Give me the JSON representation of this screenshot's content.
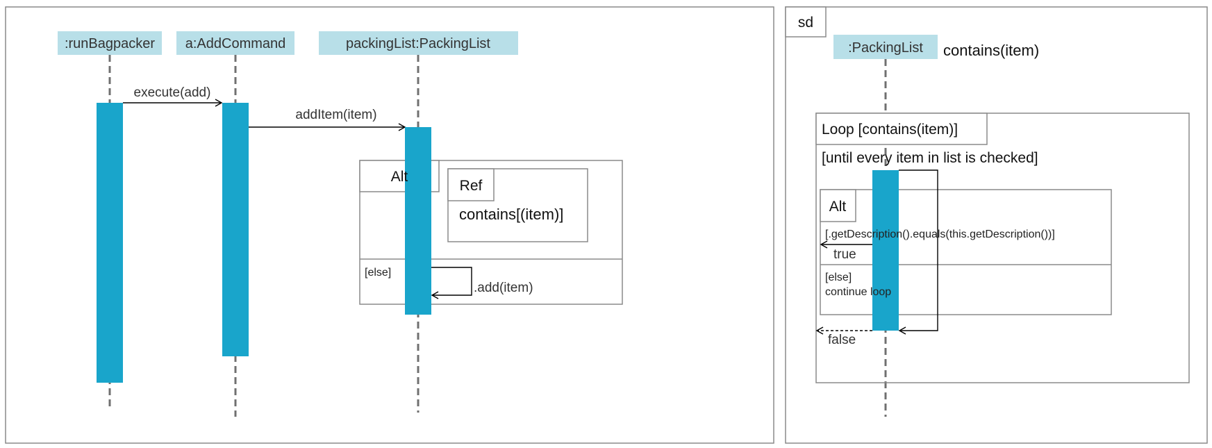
{
  "colors": {
    "lifeline_head": "#b8dfe8",
    "activation": "#19a5cb",
    "frame_border": "#8a8a8a",
    "line": "#000000",
    "lifeline_dash": "#707070"
  },
  "left": {
    "lifelines": [
      ":runBagpacker",
      "a:AddCommand",
      "packingList:PackingList"
    ],
    "messages": {
      "execute": "execute(add)",
      "add_item": "addItem(item)",
      "self_add": ".add(item)"
    },
    "alt_frame": {
      "label": "Alt",
      "else_guard": "[else]",
      "ref_label": "Ref",
      "ref_text": "contains[(item)]"
    }
  },
  "right": {
    "sd_label": "sd",
    "lifeline": ":PackingList",
    "title": "contains(item)",
    "loop_label": "Loop [contains(item)]",
    "loop_guard": "[until every item in list is checked]",
    "alt_label": "Alt",
    "alt_guard": "[.getDescription().equals(this.getDescription())]",
    "true_return": "true",
    "else_guard": "[else]",
    "else_text": "continue loop",
    "false_return": "false"
  }
}
